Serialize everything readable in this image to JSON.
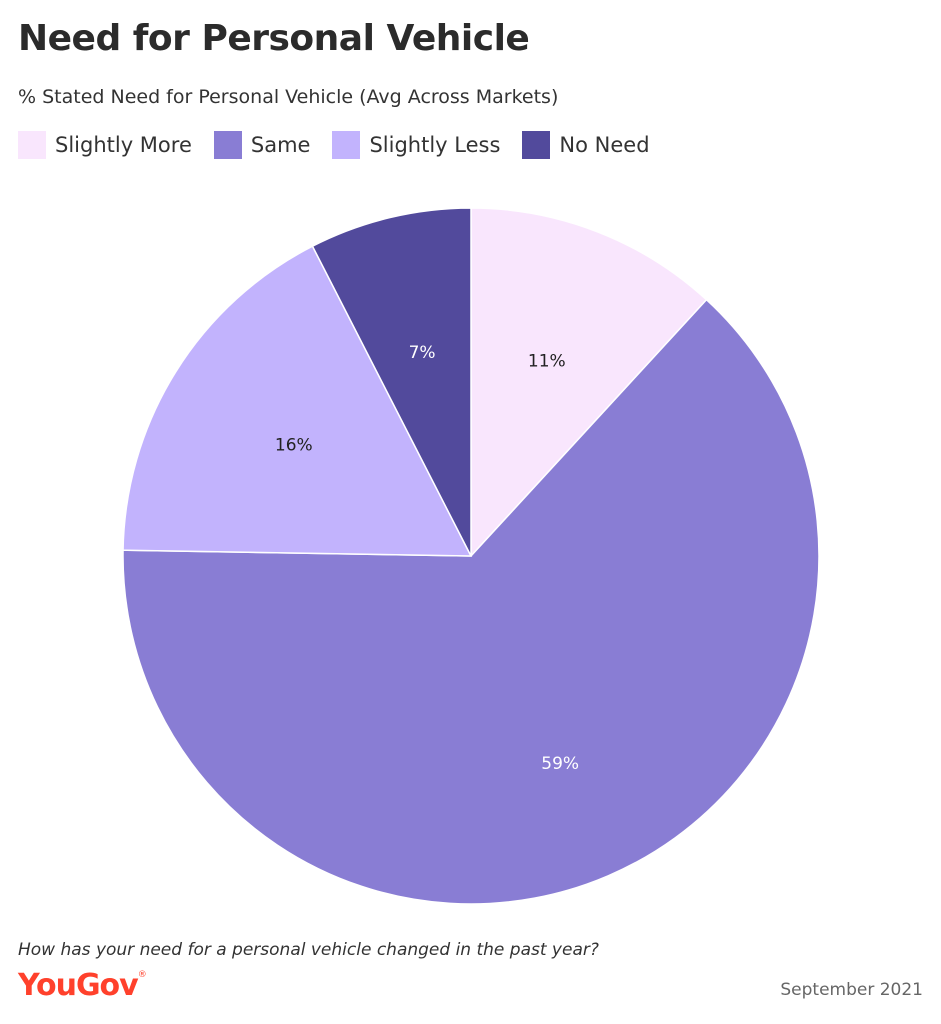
{
  "header": {
    "title": "Need for Personal Vehicle",
    "subtitle": "% Stated Need for Personal Vehicle (Avg Across Markets)"
  },
  "footer": {
    "question": "How has your need for a personal vehicle changed in the past year?",
    "logo": "YouGov",
    "date": "September 2021"
  },
  "chart_data": {
    "type": "pie",
    "title": "Need for Personal Vehicle",
    "subtitle": "% Stated Need for Personal Vehicle (Avg Across Markets)",
    "legend_position": "top-left",
    "slices": [
      {
        "label": "Slightly More",
        "value": 11,
        "display": "11%",
        "color": "#f9e6fd",
        "text_color": "#222222"
      },
      {
        "label": "Same",
        "value": 59,
        "display": "59%",
        "color": "#897dd4",
        "text_color": "#ffffff"
      },
      {
        "label": "Slightly Less",
        "value": 16,
        "display": "16%",
        "color": "#c2b3fd",
        "text_color": "#222222"
      },
      {
        "label": "No Need",
        "value": 7,
        "display": "7%",
        "color": "#524a9c",
        "text_color": "#ffffff"
      }
    ]
  }
}
